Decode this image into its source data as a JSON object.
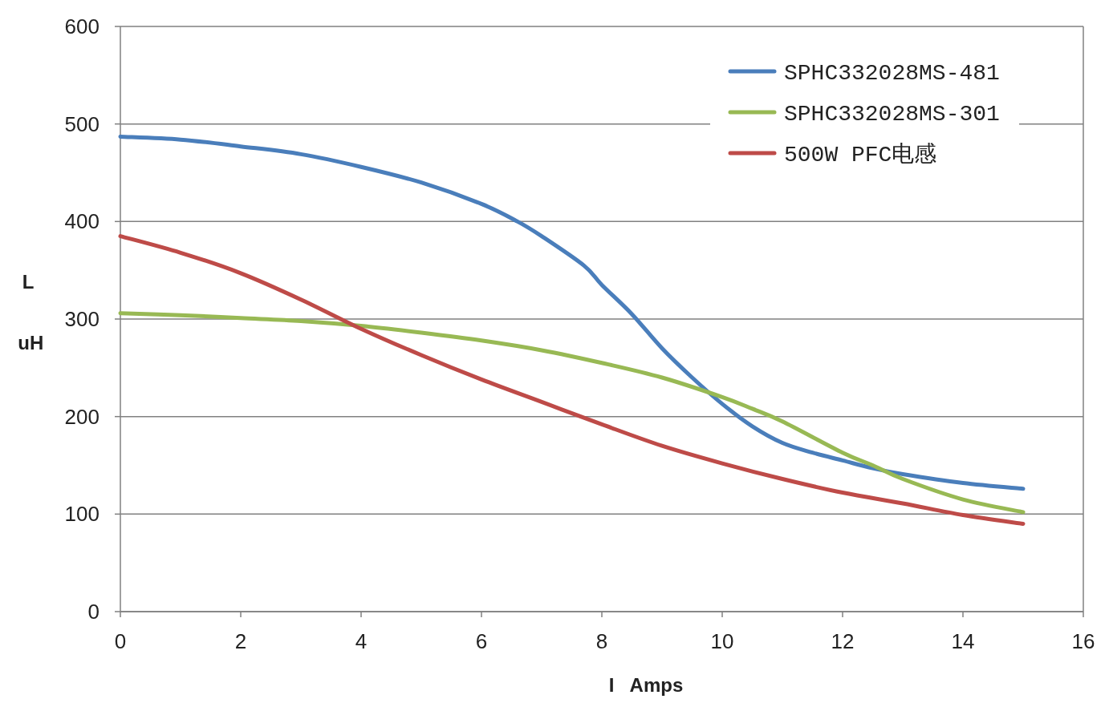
{
  "chart_data": {
    "type": "line",
    "xlabel": "I   Amps",
    "ylabel": "L uH",
    "xlim": [
      0,
      16
    ],
    "xticks": [
      0,
      2,
      4,
      6,
      8,
      10,
      12,
      14,
      16
    ],
    "ylim": [
      0,
      600
    ],
    "yticks": [
      0,
      100,
      200,
      300,
      400,
      500,
      600
    ],
    "grid": "y",
    "legend": "top right",
    "line_style": "solid",
    "series": [
      {
        "name": "SPHC332028MS-481",
        "color": "#4a7ebb",
        "x": [
          0,
          1,
          2,
          3,
          4,
          5,
          6,
          6.6,
          7,
          7.7,
          8,
          8.5,
          9,
          9.5,
          10,
          10.5,
          11,
          11.5,
          12,
          12.5,
          13,
          14,
          15
        ],
        "values": [
          487,
          484,
          477,
          469,
          456,
          440,
          418,
          400,
          385,
          355,
          335,
          305,
          270,
          240,
          213,
          190,
          173,
          163,
          155,
          147,
          141,
          132,
          126
        ]
      },
      {
        "name": "SPHC332028MS-301",
        "color": "#98b954",
        "x": [
          0,
          1,
          2,
          3,
          4,
          5,
          6,
          7,
          8,
          9,
          10,
          10.5,
          11,
          12,
          12.5,
          13,
          14,
          15
        ],
        "values": [
          306,
          304,
          301,
          298,
          293,
          286,
          278,
          268,
          255,
          240,
          220,
          208,
          195,
          163,
          150,
          136,
          115,
          102
        ]
      },
      {
        "name": "500W PFC电感",
        "color": "#be4b48",
        "x": [
          0,
          1,
          2,
          3,
          4,
          5,
          6,
          7,
          8,
          9,
          10,
          11,
          12,
          13,
          14,
          15
        ],
        "values": [
          385,
          368,
          347,
          320,
          290,
          263,
          238,
          215,
          192,
          170,
          152,
          136,
          122,
          111,
          99,
          90
        ]
      }
    ]
  }
}
